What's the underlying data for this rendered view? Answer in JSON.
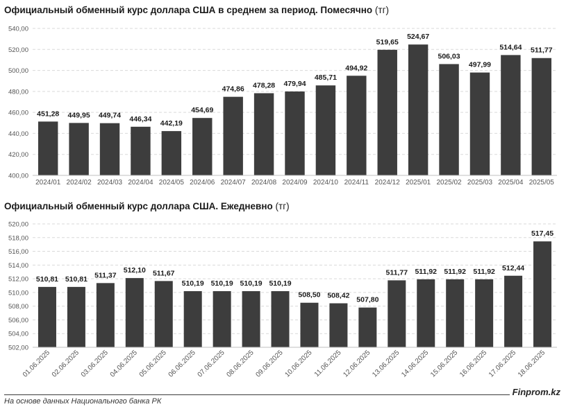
{
  "titles": {
    "monthly_bold": "Официальный обменный курс доллара США в среднем за период. Помесячно",
    "monthly_unit": "(тг)",
    "daily_bold": "Официальный обменный курс доллара США. Ежедневно",
    "daily_unit": "(тг)"
  },
  "footer": {
    "source": "На основе данных Национального банка РК",
    "brand": "Finprom.kz"
  },
  "colors": {
    "bar": "#3d3d3d",
    "grid": "#d9d9d9",
    "axis_text": "#555555"
  },
  "chart_data": [
    {
      "type": "bar",
      "title": "Официальный обменный курс доллара США в среднем за период. Помесячно (тг)",
      "categories": [
        "2024/01",
        "2024/02",
        "2024/03",
        "2024/04",
        "2024/05",
        "2024/06",
        "2024/07",
        "2024/08",
        "2024/09",
        "2024/10",
        "2024/11",
        "2024/12",
        "2025/01",
        "2025/02",
        "2025/03",
        "2025/04",
        "2025/05"
      ],
      "values": [
        451.28,
        449.95,
        449.74,
        446.34,
        442.19,
        454.69,
        474.86,
        478.28,
        479.94,
        485.71,
        494.92,
        519.65,
        524.67,
        506.03,
        497.99,
        514.64,
        511.77
      ],
      "data_labels": [
        "451,28",
        "449,95",
        "449,74",
        "446,34",
        "442,19",
        "454,69",
        "474,86",
        "478,28",
        "479,94",
        "485,71",
        "494,92",
        "519,65",
        "524,67",
        "506,03",
        "497,99",
        "514,64",
        "511,77"
      ],
      "ylim": [
        400,
        540
      ],
      "yticks": [
        400,
        420,
        440,
        460,
        480,
        500,
        520,
        540
      ],
      "ytick_labels": [
        "400,00",
        "420,00",
        "440,00",
        "460,00",
        "480,00",
        "500,00",
        "520,00",
        "540,00"
      ],
      "grid": true,
      "xlabel": "",
      "ylabel": ""
    },
    {
      "type": "bar",
      "title": "Официальный обменный курс доллара США. Ежедневно (тг)",
      "categories": [
        "01.06.2025",
        "02.06.2025",
        "03.06.2025",
        "04.06.2025",
        "05.06.2025",
        "06.06.2025",
        "07.06.2025",
        "08.06.2025",
        "09.06.2025",
        "10.06.2025",
        "11.06.2025",
        "12.06.2025",
        "13.06.2025",
        "14.06.2025",
        "15.06.2025",
        "16.06.2025",
        "17.06.2025",
        "18.06.2025"
      ],
      "values": [
        510.81,
        510.81,
        511.37,
        512.1,
        511.67,
        510.19,
        510.19,
        510.19,
        510.19,
        508.5,
        508.42,
        507.8,
        511.77,
        511.92,
        511.92,
        511.92,
        512.44,
        517.45
      ],
      "data_labels": [
        "510,81",
        "510,81",
        "511,37",
        "512,10",
        "511,67",
        "510,19",
        "510,19",
        "510,19",
        "510,19",
        "508,50",
        "508,42",
        "507,80",
        "511,77",
        "511,92",
        "511,92",
        "511,92",
        "512,44",
        "517,45"
      ],
      "ylim": [
        502,
        520
      ],
      "yticks": [
        502,
        504,
        506,
        508,
        510,
        512,
        514,
        516,
        518,
        520
      ],
      "ytick_labels": [
        "502,00",
        "504,00",
        "506,00",
        "508,00",
        "510,00",
        "512,00",
        "514,00",
        "516,00",
        "518,00",
        "520,00"
      ],
      "grid": true,
      "xlabel": "",
      "ylabel": ""
    }
  ]
}
